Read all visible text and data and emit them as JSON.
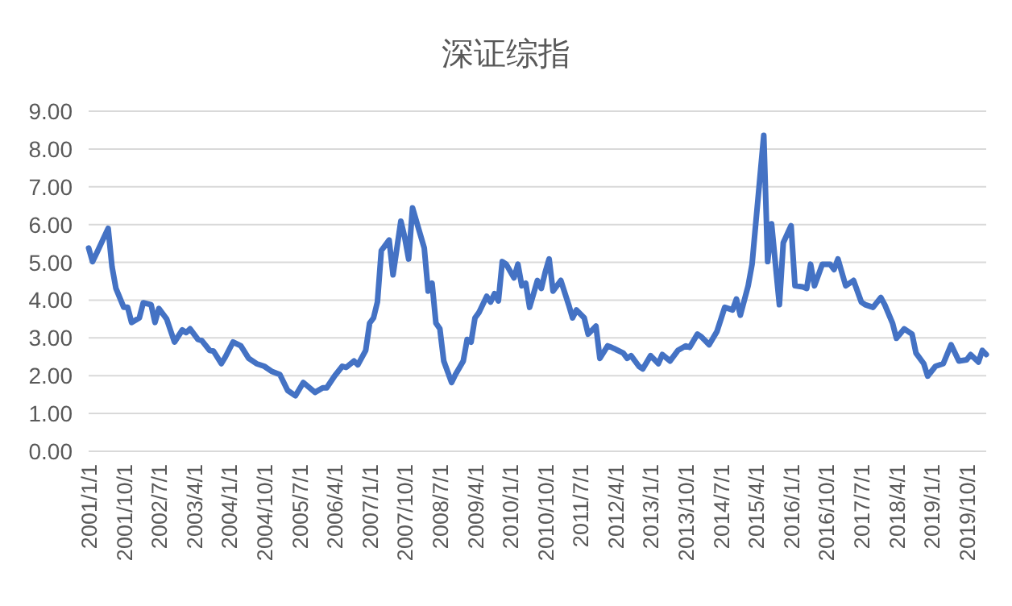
{
  "chart_data": {
    "type": "line",
    "title": "深证综指",
    "color": "#4472c4",
    "grid": "y",
    "x": [
      "2001-01",
      "2001-02",
      "2001-03",
      "2001-06",
      "2001-07",
      "2001-08",
      "2001-10",
      "2001-11",
      "2001-12",
      "2002-02",
      "2002-03",
      "2002-05",
      "2002-06",
      "2002-07",
      "2002-09",
      "2002-11",
      "2003-01",
      "2003-02",
      "2003-03",
      "2003-05",
      "2003-06",
      "2003-08",
      "2003-09",
      "2003-11",
      "2003-12",
      "2004-02",
      "2004-04",
      "2004-06",
      "2004-08",
      "2004-10",
      "2004-12",
      "2005-02",
      "2005-04",
      "2005-06",
      "2005-08",
      "2005-11",
      "2006-01",
      "2006-02",
      "2006-04",
      "2006-06",
      "2006-07",
      "2006-09",
      "2006-10",
      "2006-12",
      "2007-01",
      "2007-02",
      "2007-03",
      "2007-04",
      "2007-06",
      "2007-07",
      "2007-09",
      "2007-10",
      "2007-11",
      "2007-12",
      "2008-02",
      "2008-03",
      "2008-04",
      "2008-05",
      "2008-06",
      "2008-07",
      "2008-08",
      "2008-10",
      "2008-11",
      "2009-01",
      "2009-02",
      "2009-03",
      "2009-04",
      "2009-05",
      "2009-07",
      "2009-08",
      "2009-09",
      "2009-10",
      "2009-11",
      "2009-12",
      "2010-02",
      "2010-03",
      "2010-04",
      "2010-05",
      "2010-06",
      "2010-08",
      "2010-09",
      "2010-10",
      "2010-11",
      "2010-12",
      "2011-02",
      "2011-04",
      "2011-05",
      "2011-06",
      "2011-08",
      "2011-09",
      "2011-11",
      "2011-12",
      "2012-02",
      "2012-03",
      "2012-06",
      "2012-07",
      "2012-08",
      "2012-10",
      "2012-11",
      "2013-01",
      "2013-03",
      "2013-04",
      "2013-06",
      "2013-08",
      "2013-10",
      "2013-11",
      "2014-01",
      "2014-02",
      "2014-04",
      "2014-06",
      "2014-08",
      "2014-10",
      "2014-11",
      "2014-12",
      "2015-02",
      "2015-03",
      "2015-04",
      "2015-06",
      "2015-07",
      "2015-08",
      "2015-10",
      "2015-11",
      "2016-01",
      "2016-02",
      "2016-04",
      "2016-05",
      "2016-06",
      "2016-07",
      "2016-09",
      "2016-11",
      "2016-12",
      "2017-01",
      "2017-03",
      "2017-05",
      "2017-07",
      "2017-08",
      "2017-10",
      "2017-12",
      "2018-01",
      "2018-03",
      "2018-04",
      "2018-06",
      "2018-08",
      "2018-09",
      "2018-11",
      "2018-12",
      "2019-02",
      "2019-04",
      "2019-06",
      "2019-08",
      "2019-10",
      "2019-11",
      "2020-01",
      "2020-02",
      "2020-03"
    ],
    "values": [
      5.38,
      5.02,
      5.23,
      5.9,
      4.88,
      4.31,
      3.81,
      3.81,
      3.41,
      3.53,
      3.93,
      3.88,
      3.41,
      3.78,
      3.5,
      2.89,
      3.21,
      3.14,
      3.24,
      2.96,
      2.93,
      2.67,
      2.65,
      2.32,
      2.49,
      2.89,
      2.79,
      2.46,
      2.32,
      2.25,
      2.11,
      2.03,
      1.61,
      1.47,
      1.82,
      1.56,
      1.68,
      1.68,
      1.99,
      2.25,
      2.22,
      2.39,
      2.29,
      2.67,
      3.39,
      3.53,
      3.95,
      5.31,
      5.59,
      4.67,
      6.09,
      5.66,
      5.09,
      6.44,
      5.73,
      5.38,
      4.24,
      4.45,
      3.39,
      3.24,
      2.39,
      1.82,
      2.03,
      2.39,
      2.96,
      2.89,
      3.53,
      3.67,
      4.1,
      3.95,
      4.17,
      3.98,
      5.02,
      4.95,
      4.59,
      4.95,
      4.38,
      4.45,
      3.81,
      4.52,
      4.31,
      4.74,
      5.09,
      4.24,
      4.52,
      3.88,
      3.53,
      3.74,
      3.53,
      3.1,
      3.31,
      2.46,
      2.79,
      2.75,
      2.6,
      2.46,
      2.53,
      2.25,
      2.18,
      2.53,
      2.32,
      2.56,
      2.39,
      2.67,
      2.79,
      2.75,
      3.1,
      3.03,
      2.82,
      3.17,
      3.81,
      3.74,
      4.03,
      3.6,
      4.38,
      4.95,
      6.09,
      8.36,
      5.02,
      6.02,
      3.88,
      5.52,
      5.97,
      4.38,
      4.35,
      4.31,
      4.95,
      4.38,
      4.95,
      4.95,
      4.81,
      5.09,
      4.38,
      4.52,
      3.95,
      3.88,
      3.81,
      4.07,
      3.88,
      3.39,
      2.99,
      3.24,
      3.1,
      2.6,
      2.32,
      1.99,
      2.25,
      2.32,
      2.82,
      2.39,
      2.42,
      2.56,
      2.36,
      2.67,
      2.56
    ],
    "xlim": [
      "2001-01",
      "2020-03"
    ],
    "xticks": [
      {
        "value": "2001-01",
        "label": "2001/1/1"
      },
      {
        "value": "2001-10",
        "label": "2001/10/1"
      },
      {
        "value": "2002-07",
        "label": "2002/7/1"
      },
      {
        "value": "2003-04",
        "label": "2003/4/1"
      },
      {
        "value": "2004-01",
        "label": "2004/1/1"
      },
      {
        "value": "2004-10",
        "label": "2004/10/1"
      },
      {
        "value": "2005-07",
        "label": "2005/7/1"
      },
      {
        "value": "2006-04",
        "label": "2006/4/1"
      },
      {
        "value": "2007-01",
        "label": "2007/1/1"
      },
      {
        "value": "2007-10",
        "label": "2007/10/1"
      },
      {
        "value": "2008-07",
        "label": "2008/7/1"
      },
      {
        "value": "2009-04",
        "label": "2009/4/1"
      },
      {
        "value": "2010-01",
        "label": "2010/1/1"
      },
      {
        "value": "2010-10",
        "label": "2010/10/1"
      },
      {
        "value": "2011-07",
        "label": "2011/7/1"
      },
      {
        "value": "2012-04",
        "label": "2012/4/1"
      },
      {
        "value": "2013-01",
        "label": "2013/1/1"
      },
      {
        "value": "2013-10",
        "label": "2013/10/1"
      },
      {
        "value": "2014-07",
        "label": "2014/7/1"
      },
      {
        "value": "2015-04",
        "label": "2015/4/1"
      },
      {
        "value": "2016-01",
        "label": "2016/1/1"
      },
      {
        "value": "2016-10",
        "label": "2016/10/1"
      },
      {
        "value": "2017-07",
        "label": "2017/7/1"
      },
      {
        "value": "2018-04",
        "label": "2018/4/1"
      },
      {
        "value": "2019-01",
        "label": "2019/1/1"
      },
      {
        "value": "2019-10",
        "label": "2019/10/1"
      }
    ],
    "ylim": [
      0,
      9
    ],
    "yticks": [
      {
        "value": 0,
        "label": "0.00"
      },
      {
        "value": 1,
        "label": "1.00"
      },
      {
        "value": 2,
        "label": "2.00"
      },
      {
        "value": 3,
        "label": "3.00"
      },
      {
        "value": 4,
        "label": "4.00"
      },
      {
        "value": 5,
        "label": "5.00"
      },
      {
        "value": 6,
        "label": "6.00"
      },
      {
        "value": 7,
        "label": "7.00"
      },
      {
        "value": 8,
        "label": "8.00"
      },
      {
        "value": 9,
        "label": "9.00"
      }
    ]
  }
}
